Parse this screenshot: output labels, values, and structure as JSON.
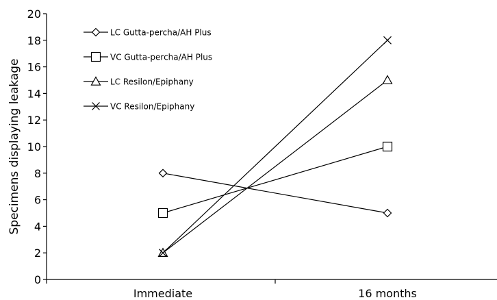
{
  "chart_data": {
    "type": "line",
    "title": "",
    "xlabel": "",
    "ylabel": "Specimens displaying leakage",
    "categories": [
      "Immediate",
      "16 months"
    ],
    "ylim": [
      0,
      20
    ],
    "yticks": [
      0,
      2,
      4,
      6,
      8,
      10,
      12,
      14,
      16,
      18,
      20
    ],
    "grid": false,
    "legend_position": "top-left",
    "series": [
      {
        "name": "LC Gutta-percha/AH Plus",
        "marker": "diamond",
        "values": [
          8,
          5
        ]
      },
      {
        "name": "VC Gutta-percha/AH Plus",
        "marker": "square",
        "values": [
          5,
          10
        ]
      },
      {
        "name": "LC Resilon/Epiphany",
        "marker": "triangle",
        "values": [
          2,
          15
        ]
      },
      {
        "name": "VC Resilon/Epiphany",
        "marker": "x",
        "values": [
          2,
          18
        ]
      }
    ],
    "colors": {
      "line": "#000000",
      "marker_fill": "#ffffff"
    }
  }
}
